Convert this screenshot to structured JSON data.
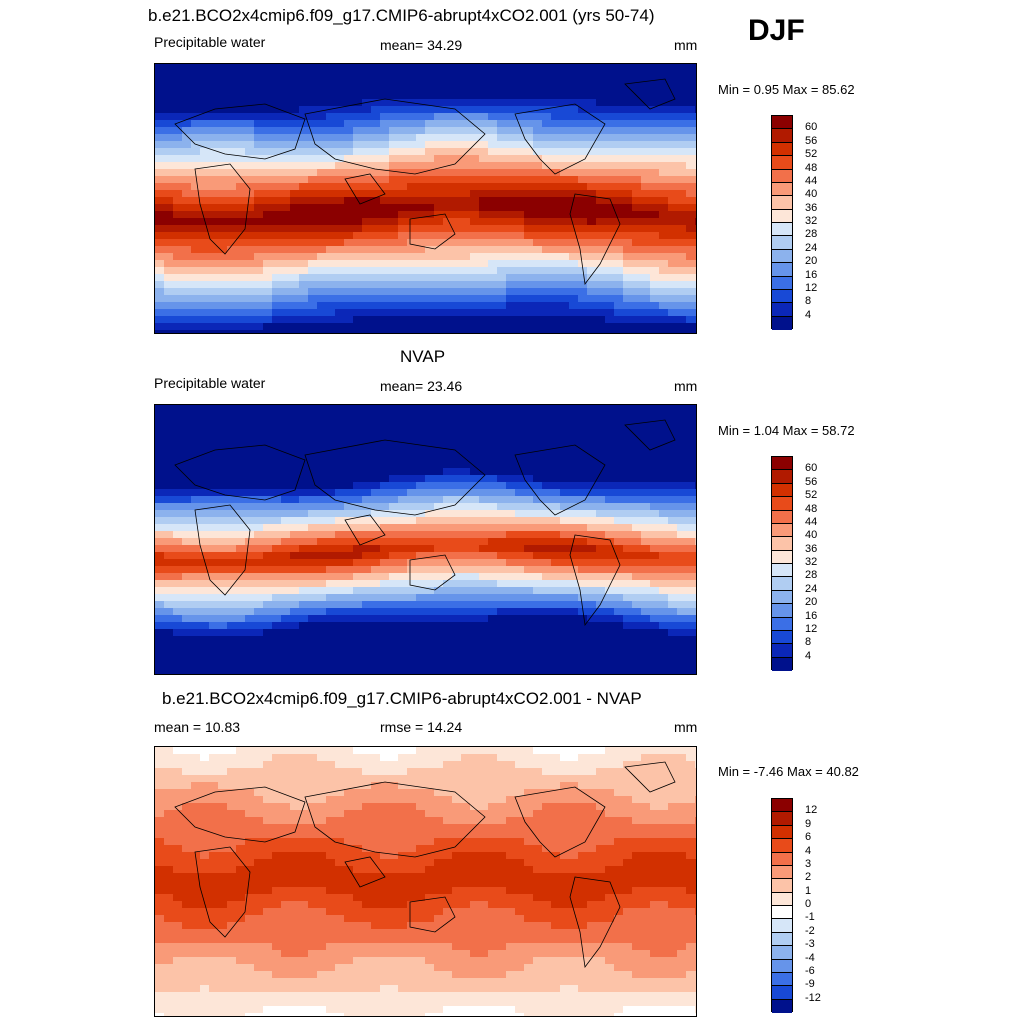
{
  "season": "DJF",
  "panels": [
    {
      "title": "b.e21.BCO2x4cmip6.f09_g17.CMIP6-abrupt4xCO2.001 (yrs 50-74)",
      "left_label": "Precipitable water",
      "center_label": "mean=  34.29",
      "right_label": "mm",
      "minmax": "Min =   0.95 Max =  85.62",
      "colorbar": {
        "labels": [
          "60",
          "56",
          "52",
          "48",
          "44",
          "40",
          "36",
          "32",
          "28",
          "24",
          "20",
          "16",
          "12",
          "8",
          "4"
        ],
        "colors": [
          "#8b0000",
          "#b11a00",
          "#d23000",
          "#e84b1a",
          "#f2704a",
          "#f99a78",
          "#fcc3a8",
          "#fde6d8",
          "#d6e6f8",
          "#b0cdf2",
          "#8cb2ed",
          "#6694ea",
          "#3b6fe6",
          "#1849d6",
          "#0b27b8",
          "#00118c"
        ]
      },
      "field": "model"
    },
    {
      "title": "NVAP",
      "left_label": "Precipitable water",
      "center_label": "mean=  23.46",
      "right_label": "mm",
      "minmax": "Min =   1.04 Max =  58.72",
      "colorbar": {
        "labels": [
          "60",
          "56",
          "52",
          "48",
          "44",
          "40",
          "36",
          "32",
          "28",
          "24",
          "20",
          "16",
          "12",
          "8",
          "4"
        ],
        "colors": [
          "#8b0000",
          "#b11a00",
          "#d23000",
          "#e84b1a",
          "#f2704a",
          "#f99a78",
          "#fcc3a8",
          "#fde6d8",
          "#d6e6f8",
          "#b0cdf2",
          "#8cb2ed",
          "#6694ea",
          "#3b6fe6",
          "#1849d6",
          "#0b27b8",
          "#00118c"
        ]
      },
      "field": "obs"
    },
    {
      "title": "b.e21.BCO2x4cmip6.f09_g17.CMIP6-abrupt4xCO2.001 - NVAP",
      "left_label": "mean =  10.83",
      "center_label": "rmse =  14.24",
      "right_label": "mm",
      "minmax": "Min =  -7.46 Max =  40.82",
      "colorbar": {
        "labels": [
          "12",
          "9",
          "6",
          "4",
          "3",
          "2",
          "1",
          "0",
          "-1",
          "-2",
          "-3",
          "-4",
          "-6",
          "-9",
          "-12"
        ],
        "colors": [
          "#8b0000",
          "#b11a00",
          "#d23000",
          "#e84b1a",
          "#f2704a",
          "#f99a78",
          "#fcc3a8",
          "#fde6d8",
          "#ffffff",
          "#d6e6f8",
          "#b0cdf2",
          "#8cb2ed",
          "#6694ea",
          "#3b6fe6",
          "#1849d6",
          "#00118c"
        ]
      },
      "field": "diff"
    }
  ]
}
